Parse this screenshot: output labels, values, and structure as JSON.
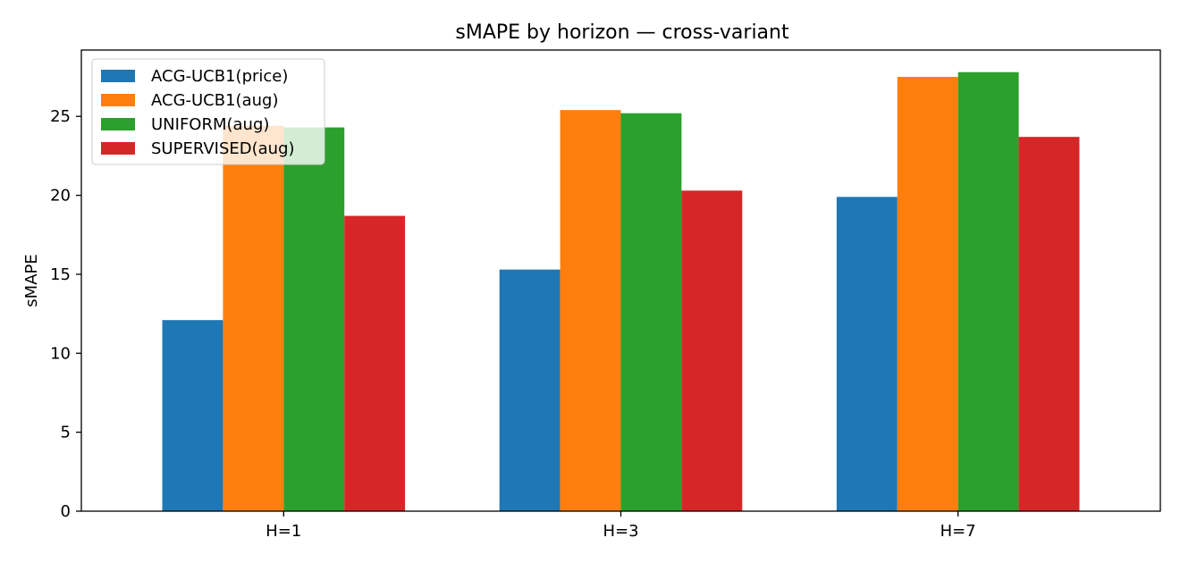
{
  "chart_data": {
    "type": "bar",
    "title": "sMAPE by horizon — cross-variant",
    "xlabel": "",
    "ylabel": "sMAPE",
    "categories": [
      "H=1",
      "H=3",
      "H=7"
    ],
    "ylim": [
      0,
      29.2
    ],
    "yticks": [
      0,
      5,
      10,
      15,
      20,
      25
    ],
    "grid": false,
    "legend_position": "top-left",
    "series": [
      {
        "name": "ACG-UCB1(price)",
        "color": "#1f77b4",
        "values": [
          12.1,
          15.3,
          19.9
        ]
      },
      {
        "name": "ACG-UCB1(aug)",
        "color": "#ff7f0e",
        "values": [
          24.4,
          25.4,
          27.5
        ]
      },
      {
        "name": "UNIFORM(aug)",
        "color": "#2ca02c",
        "values": [
          24.3,
          25.2,
          27.8
        ]
      },
      {
        "name": "SUPERVISED(aug)",
        "color": "#d62728",
        "values": [
          18.7,
          20.3,
          23.7
        ]
      }
    ]
  }
}
